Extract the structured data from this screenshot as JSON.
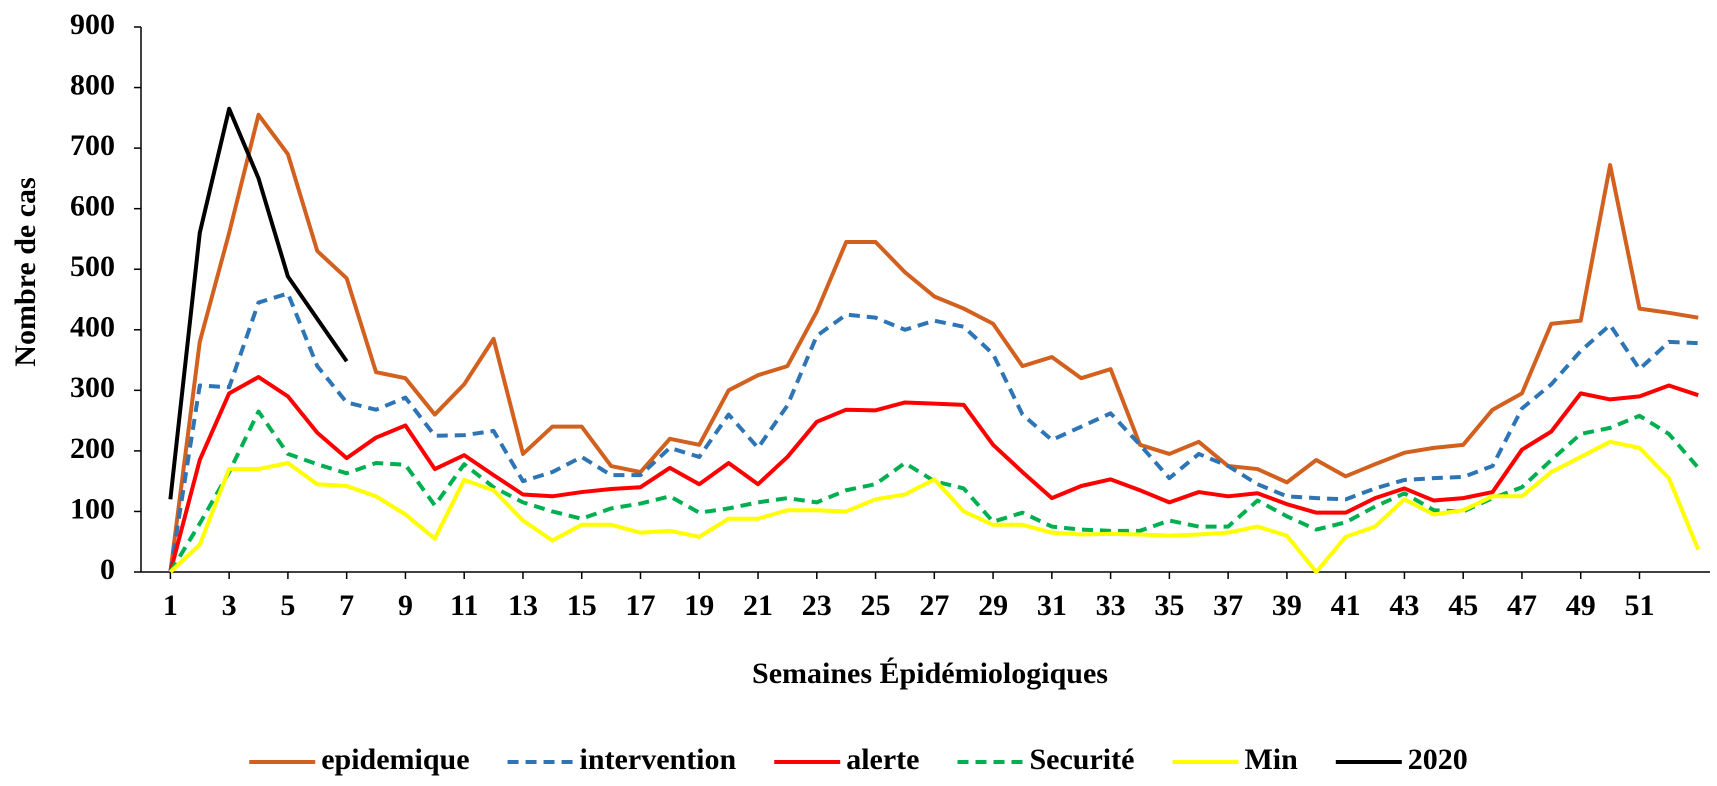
{
  "chart_data": {
    "type": "line",
    "y_label": "Nombre de cas",
    "x_label": "Semaines Épidémiologiques",
    "x": [
      1,
      2,
      3,
      4,
      5,
      6,
      7,
      8,
      9,
      10,
      11,
      12,
      13,
      14,
      15,
      16,
      17,
      18,
      19,
      20,
      21,
      22,
      23,
      24,
      25,
      26,
      27,
      28,
      29,
      30,
      31,
      32,
      33,
      34,
      35,
      36,
      37,
      38,
      39,
      40,
      41,
      42,
      43,
      44,
      45,
      46,
      47,
      48,
      49,
      50,
      51,
      52,
      53
    ],
    "xlim": [
      0,
      53.4
    ],
    "xticks": [
      1,
      3,
      5,
      7,
      9,
      11,
      13,
      15,
      17,
      19,
      21,
      23,
      25,
      27,
      29,
      31,
      33,
      35,
      37,
      39,
      41,
      43,
      45,
      47,
      49,
      51
    ],
    "ylim": [
      0,
      900
    ],
    "yticks": [
      0,
      100,
      200,
      300,
      400,
      500,
      600,
      700,
      800,
      900
    ],
    "legend": "bottom",
    "series": [
      {
        "name": "epidemique",
        "color": "#d2601f",
        "style": "solid",
        "values": [
          0,
          380,
          560,
          755,
          690,
          530,
          485,
          330,
          320,
          260,
          310,
          385,
          195,
          240,
          240,
          175,
          165,
          220,
          210,
          300,
          325,
          340,
          430,
          545,
          545,
          495,
          455,
          435,
          410,
          340,
          355,
          320,
          335,
          210,
          195,
          215,
          175,
          170,
          148,
          185,
          158,
          178,
          197,
          205,
          210,
          268,
          295,
          410,
          415,
          672,
          435,
          428,
          420
        ]
      },
      {
        "name": "intervention",
        "color": "#2e75b6",
        "style": "dashed",
        "values": [
          0,
          308,
          305,
          445,
          460,
          340,
          280,
          268,
          288,
          225,
          226,
          233,
          150,
          165,
          190,
          160,
          160,
          205,
          190,
          260,
          205,
          275,
          390,
          425,
          420,
          400,
          415,
          405,
          360,
          260,
          218,
          240,
          262,
          210,
          155,
          195,
          175,
          145,
          125,
          122,
          120,
          138,
          152,
          155,
          157,
          175,
          270,
          310,
          365,
          408,
          335,
          380,
          378
        ]
      },
      {
        "name": "alerte",
        "color": "#ff0000",
        "style": "solid",
        "values": [
          0,
          185,
          295,
          322,
          290,
          230,
          188,
          222,
          242,
          170,
          193,
          160,
          128,
          125,
          132,
          137,
          140,
          172,
          145,
          180,
          145,
          190,
          248,
          268,
          267,
          280,
          278,
          276,
          210,
          165,
          122,
          142,
          153,
          135,
          115,
          132,
          125,
          130,
          112,
          98,
          98,
          122,
          138,
          118,
          122,
          132,
          202,
          232,
          295,
          285,
          290,
          308,
          292
        ]
      },
      {
        "name": "Securité",
        "color": "#00b050",
        "style": "dashed",
        "values": [
          0,
          80,
          165,
          265,
          195,
          178,
          163,
          180,
          177,
          110,
          178,
          140,
          115,
          100,
          88,
          105,
          113,
          125,
          98,
          105,
          115,
          122,
          115,
          135,
          145,
          180,
          150,
          138,
          83,
          98,
          75,
          70,
          68,
          68,
          85,
          75,
          75,
          118,
          92,
          70,
          82,
          108,
          130,
          102,
          100,
          122,
          140,
          185,
          228,
          238,
          258,
          228,
          172
        ]
      },
      {
        "name": "Min",
        "color": "#ffff00",
        "style": "solid",
        "values": [
          0,
          45,
          170,
          170,
          180,
          145,
          142,
          125,
          95,
          55,
          152,
          135,
          85,
          52,
          78,
          78,
          65,
          68,
          58,
          88,
          88,
          102,
          102,
          100,
          120,
          128,
          153,
          100,
          78,
          78,
          65,
          62,
          63,
          62,
          60,
          62,
          65,
          75,
          60,
          0,
          58,
          75,
          120,
          95,
          102,
          125,
          125,
          165,
          190,
          215,
          205,
          155,
          37
        ]
      },
      {
        "name": "2020",
        "color": "#000000",
        "style": "solid",
        "values": [
          120,
          560,
          765,
          650,
          488,
          418,
          348,
          null,
          null,
          null,
          null,
          null,
          null,
          null,
          null,
          null,
          null,
          null,
          null,
          null,
          null,
          null,
          null,
          null,
          null,
          null,
          null,
          null,
          null,
          null,
          null,
          null,
          null,
          null,
          null,
          null,
          null,
          null,
          null,
          null,
          null,
          null,
          null,
          null,
          null,
          null,
          null,
          null,
          null,
          null,
          null,
          null,
          null
        ]
      }
    ]
  }
}
